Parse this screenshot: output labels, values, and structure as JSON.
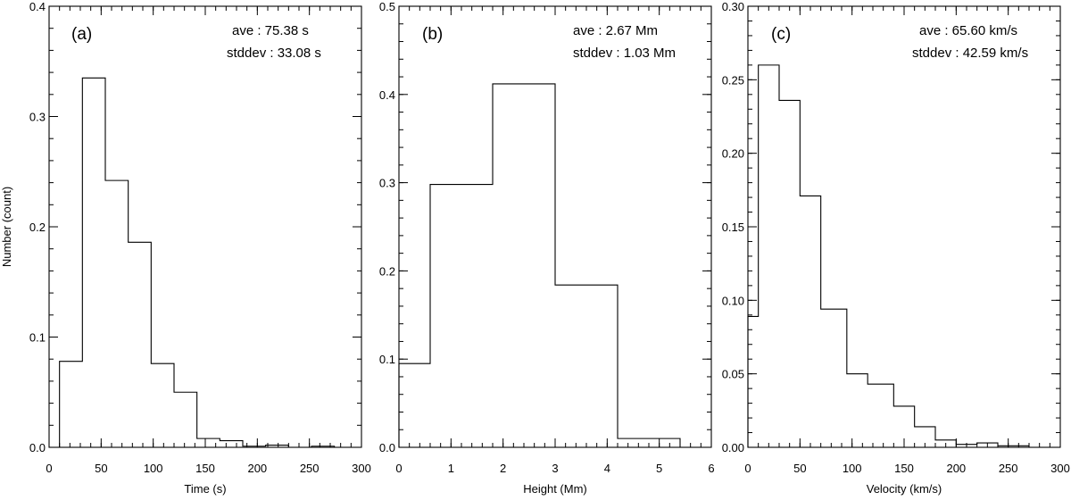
{
  "chart_data": [
    {
      "type": "histogram",
      "panel_label": "(a)",
      "stats": [
        "ave : 75.38 s",
        "stddev : 33.08 s"
      ],
      "xlabel": "Time (s)",
      "ylabel": "Number (count)",
      "xlim": [
        0,
        300
      ],
      "ylim": [
        0,
        0.4
      ],
      "xticks": [
        0,
        50,
        100,
        150,
        200,
        250,
        300
      ],
      "xtick_labels": [
        "0",
        "50",
        "100",
        "150",
        "200",
        "250",
        "300"
      ],
      "xminor_step": 10,
      "yticks": [
        0.0,
        0.1,
        0.2,
        0.3,
        0.4
      ],
      "ytick_labels": [
        "0.0",
        "0.1",
        "0.2",
        "0.3",
        "0.4"
      ],
      "yminor_step": 0.02,
      "bin_edges": [
        10,
        32,
        54,
        76,
        98,
        120,
        142,
        164,
        186,
        208,
        230,
        252,
        274
      ],
      "values": [
        0.078,
        0.335,
        0.242,
        0.186,
        0.076,
        0.05,
        0.008,
        0.006,
        0.001,
        0.002,
        0.0,
        0.001
      ]
    },
    {
      "type": "histogram",
      "panel_label": "(b)",
      "stats": [
        "ave :  2.67 Mm",
        "stddev :  1.03 Mm"
      ],
      "xlabel": "Height (Mm)",
      "xlim": [
        0,
        6
      ],
      "ylim": [
        0,
        0.5
      ],
      "xticks": [
        0,
        1,
        2,
        3,
        4,
        5,
        6
      ],
      "xtick_labels": [
        "0",
        "1",
        "2",
        "3",
        "4",
        "5",
        "6"
      ],
      "xminor_step": 0.2,
      "yticks": [
        0.0,
        0.1,
        0.2,
        0.3,
        0.4,
        0.5
      ],
      "ytick_labels": [
        "0.0",
        "0.1",
        "0.2",
        "0.3",
        "0.4",
        "0.5"
      ],
      "yminor_step": 0.02,
      "bin_edges": [
        0,
        0.6,
        1.8,
        3.0,
        4.2,
        5.4
      ],
      "values": [
        0.095,
        0.298,
        0.412,
        0.184,
        0.01
      ]
    },
    {
      "type": "histogram",
      "panel_label": "(c)",
      "stats": [
        "ave : 65.60 km/s",
        "stddev : 42.59 km/s"
      ],
      "xlabel": "Velocity (km/s)",
      "xlim": [
        0,
        300
      ],
      "ylim": [
        0,
        0.3
      ],
      "xticks": [
        0,
        50,
        100,
        150,
        200,
        250,
        300
      ],
      "xtick_labels": [
        "0",
        "50",
        "100",
        "150",
        "200",
        "250",
        "300"
      ],
      "xminor_step": 10,
      "yticks": [
        0.0,
        0.05,
        0.1,
        0.15,
        0.2,
        0.25,
        0.3
      ],
      "ytick_labels": [
        "0.00",
        "0.05",
        "0.10",
        "0.15",
        "0.20",
        "0.25",
        "0.30"
      ],
      "yminor_step": 0.01,
      "bin_edges": [
        0,
        10,
        30,
        50,
        70,
        95,
        115,
        140,
        160,
        180,
        200,
        220,
        240,
        270
      ],
      "values": [
        0.089,
        0.26,
        0.236,
        0.171,
        0.094,
        0.05,
        0.043,
        0.028,
        0.014,
        0.005,
        0.002,
        0.003,
        0.001
      ]
    }
  ]
}
